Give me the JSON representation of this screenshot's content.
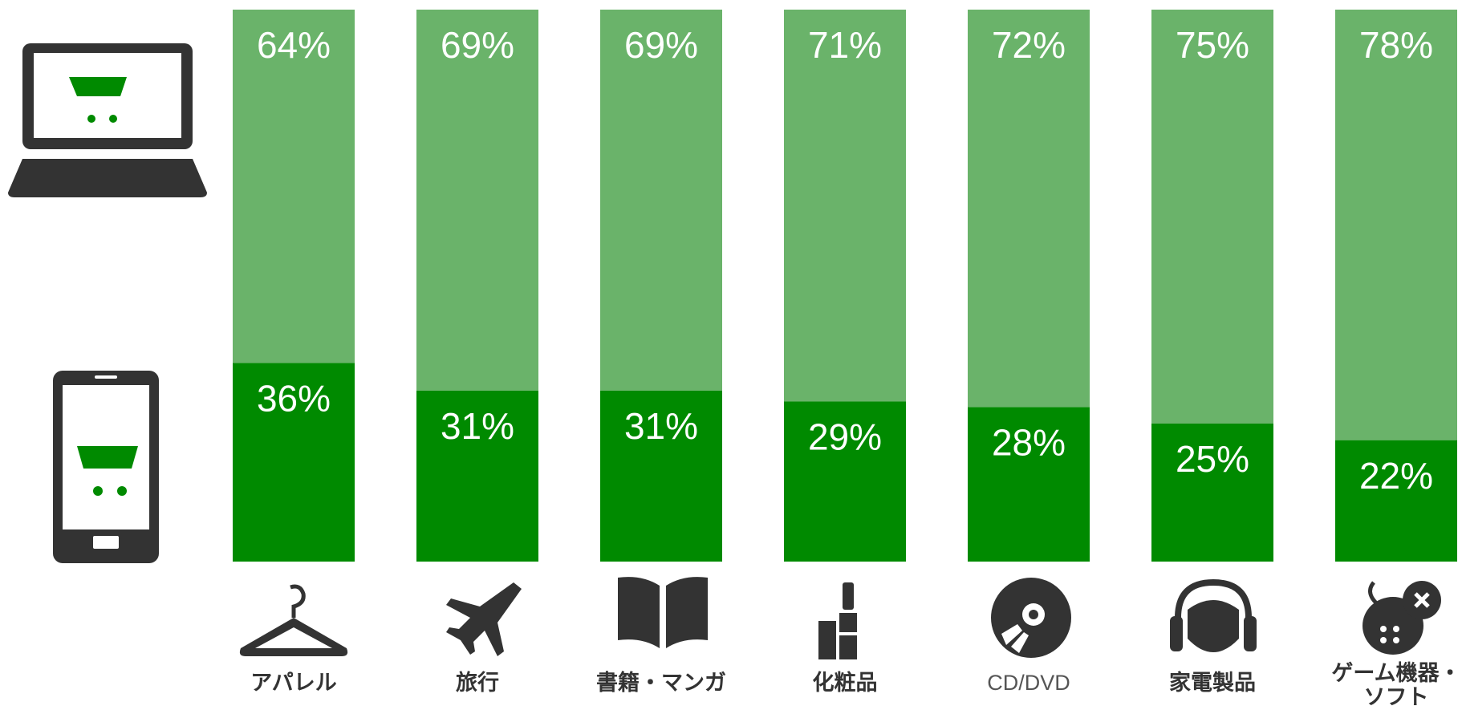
{
  "chart_data": {
    "type": "bar",
    "stacked": true,
    "categories": [
      "アパレル",
      "旅行",
      "書籍・マンガ",
      "化粧品",
      "CD/DVD",
      "家電製品",
      "ゲーム機器・\nソフト"
    ],
    "series": [
      {
        "color": "#008a00",
        "values": [
          36,
          31,
          31,
          29,
          28,
          25,
          22
        ],
        "value_labels": [
          "36%",
          "31%",
          "31%",
          "29%",
          "28%",
          "25%",
          "22%"
        ]
      },
      {
        "color": "#6ab36a",
        "values": [
          64,
          69,
          69,
          71,
          72,
          75,
          78
        ],
        "value_labels": [
          "64%",
          "69%",
          "69%",
          "71%",
          "72%",
          "75%",
          "78%"
        ]
      }
    ],
    "ylim": [
      0,
      100
    ]
  }
}
